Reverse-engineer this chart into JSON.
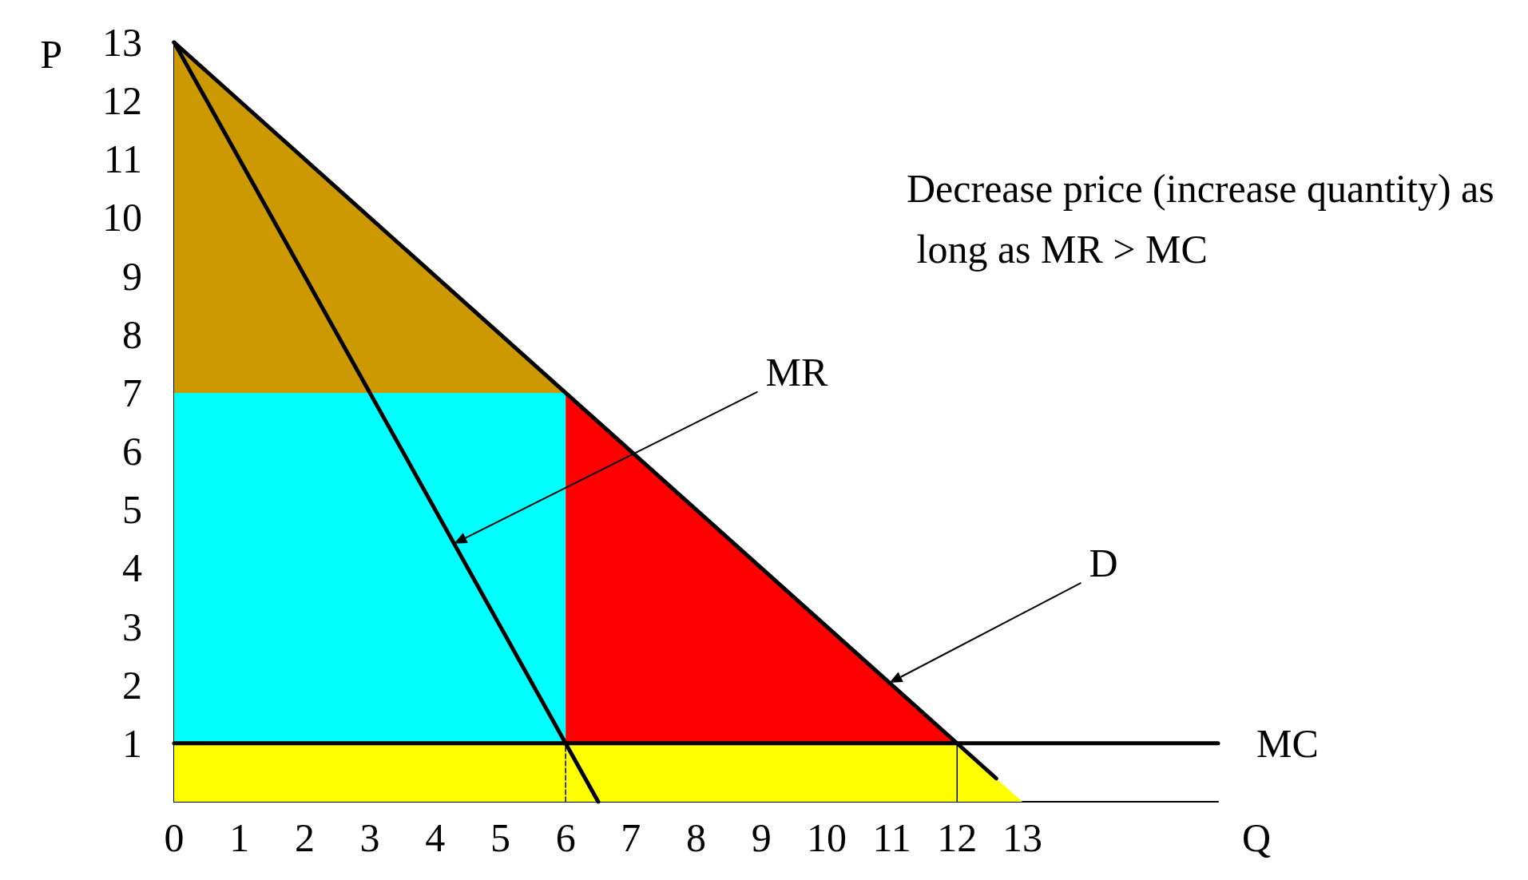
{
  "chart_data": {
    "type": "line",
    "xlabel": "Q",
    "ylabel": "P",
    "xlim": [
      0,
      16
    ],
    "ylim": [
      0,
      13
    ],
    "xticks": [
      0,
      1,
      2,
      3,
      4,
      5,
      6,
      7,
      8,
      9,
      10,
      11,
      12,
      13
    ],
    "yticks": [
      1,
      2,
      3,
      4,
      5,
      6,
      7,
      8,
      9,
      10,
      11,
      12,
      13
    ],
    "series": [
      {
        "type": "area",
        "color": "#cc9900",
        "x": [
          0,
          6
        ],
        "values": [
          13,
          7
        ]
      },
      {
        "type": "area",
        "color": "#ff0000",
        "x": [
          6,
          12
        ],
        "values": [
          7,
          1
        ]
      },
      {
        "type": "area",
        "color": "#00ffff",
        "x": [
          0,
          6
        ],
        "values": [
          7,
          7
        ]
      },
      {
        "type": "area",
        "color": "#ffff00",
        "x": [
          0,
          12,
          13
        ],
        "values": [
          1,
          1,
          0
        ]
      },
      {
        "color": "#000000",
        "x": [
          6,
          6
        ],
        "values": [
          0,
          1
        ],
        "line_style": "dashed"
      },
      {
        "color": "#000000",
        "x": [
          12,
          12
        ],
        "values": [
          0,
          1
        ],
        "line_style": "solid"
      },
      {
        "name": "D",
        "color": "#000000",
        "x": [
          0,
          12.6
        ],
        "values": [
          13,
          0.4
        ]
      },
      {
        "name": "MR",
        "color": "#000000",
        "x": [
          0,
          6.5
        ],
        "values": [
          13,
          0
        ]
      },
      {
        "name": "MC",
        "color": "#000000",
        "x": [
          0,
          16
        ],
        "values": [
          1,
          1
        ]
      }
    ],
    "annotations": [
      "Decrease price (increase quantity) as long as MR > MC"
    ]
  }
}
